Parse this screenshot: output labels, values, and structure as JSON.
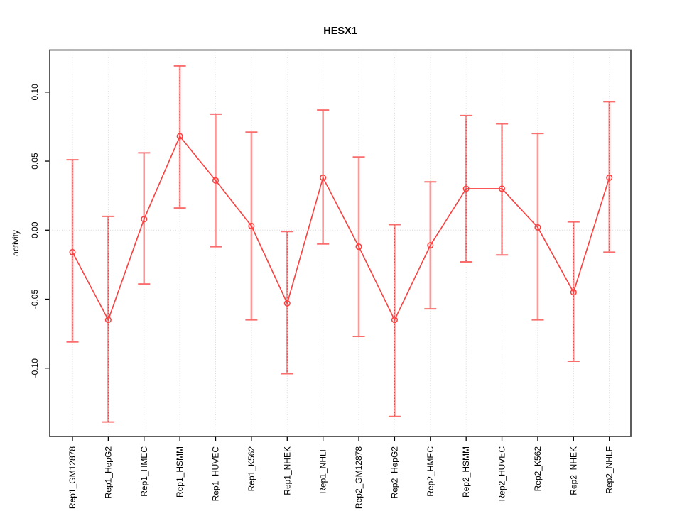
{
  "chart_data": {
    "type": "line",
    "title": "HESX1",
    "xlabel": "",
    "ylabel": "activity",
    "ylim": [
      -0.1495,
      0.1305
    ],
    "grid": "vertical dotted gridline at each category; horizontal dotted line at y=0",
    "legend": "none",
    "marker": "open-circle",
    "yticks": [
      {
        "label": "0.10",
        "value": 0.1
      },
      {
        "label": "0.05",
        "value": 0.05
      },
      {
        "label": "0.00",
        "value": 0.0
      },
      {
        "label": "-0.05",
        "value": -0.05
      },
      {
        "label": "-0.10",
        "value": -0.1
      }
    ],
    "categories": [
      "Rep1_GM12878",
      "Rep1_HepG2",
      "Rep1_HMEC",
      "Rep1_HSMM",
      "Rep1_HUVEC",
      "Rep1_K562",
      "Rep1_NHEK",
      "Rep1_NHLF",
      "Rep2_GM12878",
      "Rep2_HepG2",
      "Rep2_HMEC",
      "Rep2_HSMM",
      "Rep2_HUVEC",
      "Rep2_K562",
      "Rep2_NHEK",
      "Rep2_NHLF"
    ],
    "series": [
      {
        "name": "activity",
        "values": [
          -0.016,
          -0.065,
          0.008,
          0.068,
          0.036,
          0.003,
          -0.053,
          0.038,
          -0.012,
          -0.065,
          -0.011,
          0.03,
          0.03,
          0.002,
          -0.045,
          0.038
        ],
        "error_high": [
          0.051,
          0.01,
          0.056,
          0.119,
          0.084,
          0.071,
          -0.001,
          0.087,
          0.053,
          0.004,
          0.035,
          0.083,
          0.077,
          0.07,
          0.006,
          0.093
        ],
        "error_low": [
          -0.081,
          -0.139,
          -0.039,
          0.016,
          -0.012,
          -0.065,
          -0.104,
          -0.01,
          -0.077,
          -0.135,
          -0.057,
          -0.023,
          -0.018,
          -0.065,
          -0.095,
          -0.016
        ],
        "bar_styles": [
          "dotted",
          "dotted",
          "solid",
          "dotted",
          "solid",
          "solid",
          "dotted",
          "solid",
          "solid",
          "dotted",
          "solid",
          "dotted",
          "dotted",
          "solid",
          "dotted",
          "dotted"
        ]
      }
    ],
    "colors": {
      "line": "#fb3f3f",
      "marker": "#fb3f3f",
      "error_bar": "#fb9898",
      "error_cap": "#fa6d6d",
      "error_dotted_overlay": "#e04848",
      "grid": "#d6d6d6",
      "plot_border": "#4b4b4b",
      "text": "#000000",
      "background": "#ffffff"
    }
  }
}
